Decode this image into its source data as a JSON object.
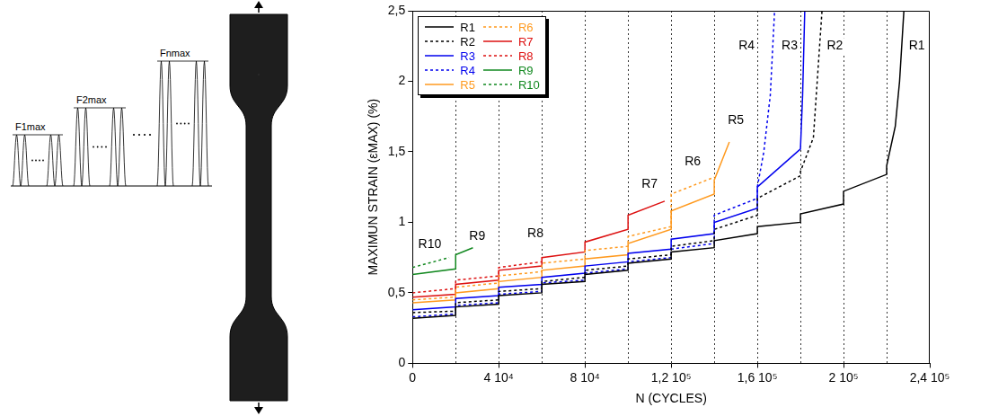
{
  "loading_scheme": {
    "labels": [
      "F1max",
      "F2max",
      "Fnmax"
    ]
  },
  "chart_data": {
    "type": "line",
    "x_label": "N (CYCLES)",
    "y_label": "MAXIMUN STRAIN (εMAX) (%)",
    "xlim": [
      0,
      240000
    ],
    "xticks": [
      0,
      {
        "value": 40000,
        "label": "4 10⁴"
      },
      {
        "value": 80000,
        "label": "8 10⁴"
      },
      {
        "value": 120000,
        "label": "1,2 10⁵"
      },
      {
        "value": 160000,
        "label": "1,6 10⁵"
      },
      {
        "value": 200000,
        "label": "2 10⁵"
      },
      {
        "value": 240000,
        "label": "2,4 10⁵"
      }
    ],
    "ylim": [
      0,
      2.5
    ],
    "yticks": [
      0,
      {
        "value": 0.5,
        "label": "0,5"
      },
      1,
      {
        "value": 1.5,
        "label": "1,5"
      },
      2,
      {
        "value": 2.5,
        "label": "2,5"
      }
    ],
    "grid": false,
    "legend": "upper left",
    "load_steps": [
      20000,
      40000,
      60000,
      80000,
      100000,
      120000,
      140000,
      160000,
      180000,
      200000,
      220000
    ],
    "annotations": [
      {
        "text": "R10",
        "x": 8000,
        "y": 0.84
      },
      {
        "text": "R9",
        "x": 30000,
        "y": 0.9
      },
      {
        "text": "R8",
        "x": 57000,
        "y": 0.92
      },
      {
        "text": "R7",
        "x": 110000,
        "y": 1.27
      },
      {
        "text": "R6",
        "x": 130000,
        "y": 1.43
      },
      {
        "text": "R5",
        "x": 150000,
        "y": 1.72
      },
      {
        "text": "R4",
        "x": 155000,
        "y": 2.25
      },
      {
        "text": "R3",
        "x": 175000,
        "y": 2.25
      },
      {
        "text": "R2",
        "x": 196000,
        "y": 2.25
      },
      {
        "text": "R1",
        "x": 234000,
        "y": 2.25
      }
    ],
    "series": [
      {
        "name": "R1",
        "color": "#000000",
        "line_style": "solid",
        "x": [
          0,
          20000,
          20000,
          40000,
          40000,
          60000,
          60000,
          80000,
          80000,
          100000,
          100000,
          120000,
          120000,
          140000,
          140000,
          160000,
          160000,
          180000,
          180000,
          200000,
          200000,
          220000,
          220000,
          224000,
          226000,
          228000
        ],
        "values": [
          0.32,
          0.34,
          0.4,
          0.42,
          0.48,
          0.5,
          0.56,
          0.58,
          0.63,
          0.66,
          0.71,
          0.74,
          0.79,
          0.82,
          0.87,
          0.92,
          0.97,
          1.0,
          1.06,
          1.13,
          1.22,
          1.34,
          1.4,
          1.68,
          2.0,
          2.5
        ]
      },
      {
        "name": "R2",
        "color": "#000000",
        "line_style": "dotted",
        "x": [
          0,
          20000,
          20000,
          40000,
          40000,
          60000,
          60000,
          80000,
          80000,
          100000,
          100000,
          120000,
          120000,
          140000,
          140000,
          160000,
          160000,
          180000,
          180000,
          186000,
          190000
        ],
        "values": [
          0.36,
          0.37,
          0.43,
          0.45,
          0.51,
          0.53,
          0.58,
          0.61,
          0.66,
          0.69,
          0.74,
          0.77,
          0.83,
          0.87,
          0.95,
          1.05,
          1.17,
          1.33,
          1.36,
          1.6,
          2.5
        ]
      },
      {
        "name": "R3",
        "color": "#0000ee",
        "line_style": "solid",
        "x": [
          0,
          20000,
          20000,
          40000,
          40000,
          60000,
          60000,
          80000,
          80000,
          100000,
          100000,
          120000,
          120000,
          140000,
          140000,
          160000,
          160000,
          180000,
          181000,
          182000
        ],
        "values": [
          0.38,
          0.4,
          0.46,
          0.48,
          0.54,
          0.56,
          0.61,
          0.64,
          0.69,
          0.72,
          0.78,
          0.81,
          0.88,
          0.92,
          1.0,
          1.1,
          1.25,
          1.52,
          1.9,
          2.5
        ]
      },
      {
        "name": "R4",
        "color": "#0000ee",
        "line_style": "dotted",
        "x": [
          0,
          20000,
          20000,
          40000,
          40000,
          60000,
          60000,
          80000,
          80000,
          100000,
          100000,
          120000,
          120000,
          140000,
          140000,
          160000,
          160000,
          163000,
          166000,
          168000
        ],
        "values": [
          0.33,
          0.35,
          0.41,
          0.43,
          0.49,
          0.51,
          0.57,
          0.59,
          0.64,
          0.67,
          0.72,
          0.75,
          0.81,
          0.85,
          1.05,
          1.17,
          1.25,
          1.5,
          1.9,
          2.5
        ]
      },
      {
        "name": "R5",
        "color": "#ff9a1f",
        "line_style": "solid",
        "x": [
          0,
          20000,
          20000,
          40000,
          40000,
          60000,
          60000,
          80000,
          80000,
          100000,
          100000,
          120000,
          120000,
          140000,
          140000,
          147000
        ],
        "values": [
          0.43,
          0.45,
          0.5,
          0.53,
          0.58,
          0.61,
          0.66,
          0.69,
          0.74,
          0.77,
          0.85,
          0.95,
          1.08,
          1.2,
          1.3,
          1.57
        ]
      },
      {
        "name": "R6",
        "color": "#ff9a1f",
        "line_style": "dotted",
        "x": [
          0,
          20000,
          20000,
          40000,
          40000,
          60000,
          60000,
          80000,
          80000,
          100000,
          100000,
          120000,
          120000,
          140000
        ],
        "values": [
          0.45,
          0.47,
          0.54,
          0.57,
          0.62,
          0.65,
          0.71,
          0.74,
          0.8,
          0.83,
          0.9,
          0.97,
          1.2,
          1.32
        ]
      },
      {
        "name": "R7",
        "color": "#dd1111",
        "line_style": "solid",
        "x": [
          0,
          20000,
          20000,
          40000,
          40000,
          60000,
          60000,
          80000,
          80000,
          100000,
          100000,
          117000
        ],
        "values": [
          0.47,
          0.49,
          0.56,
          0.59,
          0.66,
          0.69,
          0.75,
          0.79,
          0.86,
          0.95,
          1.05,
          1.15
        ]
      },
      {
        "name": "R8",
        "color": "#dd1111",
        "line_style": "dotted",
        "x": [
          0,
          20000,
          20000,
          40000,
          40000,
          60000
        ],
        "values": [
          0.5,
          0.53,
          0.59,
          0.62,
          0.68,
          0.72
        ]
      },
      {
        "name": "R9",
        "color": "#11881f",
        "line_style": "solid",
        "x": [
          0,
          20000,
          20000,
          28000
        ],
        "values": [
          0.63,
          0.67,
          0.77,
          0.82
        ]
      },
      {
        "name": "R10",
        "color": "#11881f",
        "line_style": "dotted",
        "x": [
          0,
          17000
        ],
        "values": [
          0.68,
          0.75
        ]
      }
    ]
  }
}
